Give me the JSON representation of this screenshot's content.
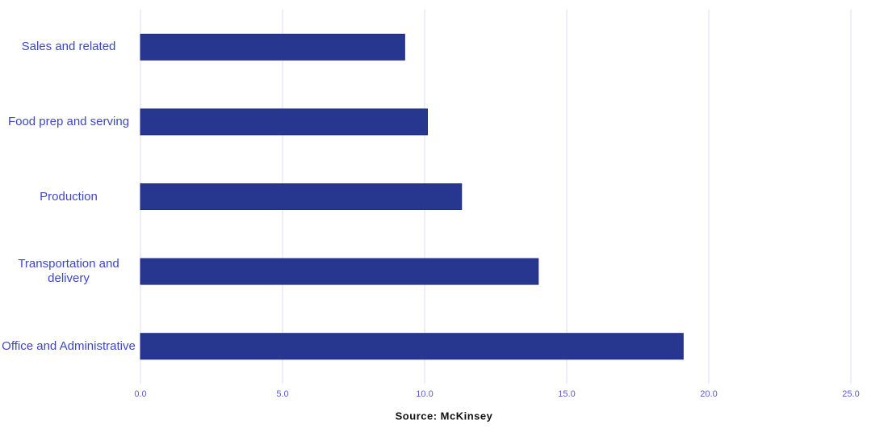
{
  "chart_data": {
    "type": "bar",
    "orientation": "horizontal",
    "categories": [
      "Sales and related",
      "Food prep and serving",
      "Production",
      "Transportation and delivery",
      "Office and Administrative"
    ],
    "values": [
      9.3,
      10.1,
      11.3,
      14.0,
      19.1
    ],
    "color": "#27378f",
    "xlim": [
      0,
      25
    ],
    "xticks": [
      {
        "value": 0,
        "label": "0.0"
      },
      {
        "value": 5,
        "label": "5.0"
      },
      {
        "value": 10,
        "label": "10.0"
      },
      {
        "value": 15,
        "label": "15.0"
      },
      {
        "value": 20,
        "label": "20.0"
      },
      {
        "value": 25,
        "label": "25.0"
      }
    ],
    "grid": true,
    "source": "Source: McKinsey"
  }
}
